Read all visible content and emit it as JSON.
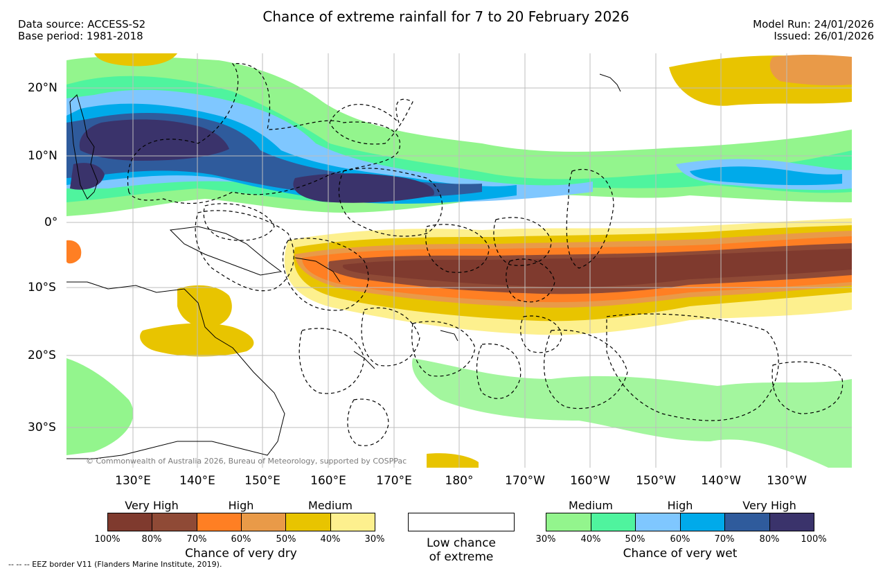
{
  "title": "Chance of extreme rainfall for 7 to 20 February 2026",
  "data_source": "Data source: ACCESS-S2",
  "base_period": "Base period: 1981-2018",
  "model_run": "Model Run: 24/01/2026",
  "issued": "Issued: 26/01/2026",
  "lat_labels": [
    "20°N",
    "10°N",
    "0°",
    "10°S",
    "20°S",
    "30°S"
  ],
  "lon_labels": [
    "130°E",
    "140°E",
    "150°E",
    "160°E",
    "170°E",
    "180°",
    "170°W",
    "160°W",
    "150°W",
    "140°W",
    "130°W"
  ],
  "copyright": "© Commonwealth of Australia 2026, Bureau of Meteorology, supported by COSPPac",
  "legend_dry": {
    "headers": [
      "Very High",
      "High",
      "Medium"
    ],
    "colors": [
      "#7f3a2e",
      "#8f4a36",
      "#ff7f23",
      "#e99a48",
      "#e8c400",
      "#fdf08e"
    ],
    "ticks": [
      "100%",
      "80%",
      "70%",
      "60%",
      "50%",
      "40%",
      "30%"
    ],
    "caption": "Chance of very dry"
  },
  "legend_low": {
    "line1": "Low chance",
    "line2": "of extreme"
  },
  "legend_wet": {
    "headers": [
      "Medium",
      "High",
      "Very High"
    ],
    "colors": [
      "#93f58d",
      "#4ff49e",
      "#7fc7ff",
      "#00aaea",
      "#2f5b9c",
      "#3a336b"
    ],
    "ticks": [
      "30%",
      "40%",
      "50%",
      "60%",
      "70%",
      "80%",
      "100%"
    ],
    "caption": "Chance of very wet"
  },
  "eez_note": "-- -- -- EEZ border V11 (Flanders Marine Institute, 2019).",
  "palette": {
    "grid": "#bdbdbd",
    "coast": "#000000"
  }
}
